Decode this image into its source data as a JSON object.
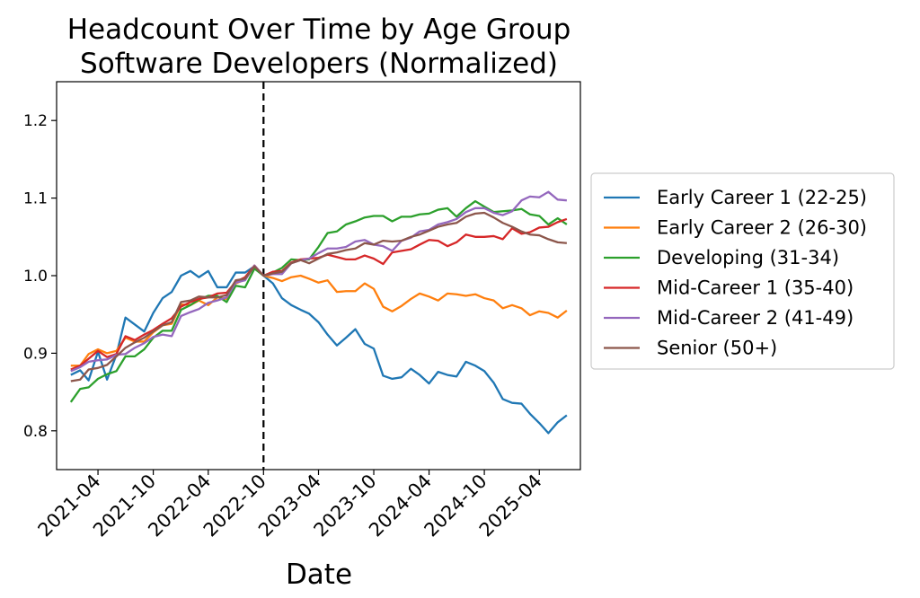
{
  "chart_data": {
    "type": "line",
    "title": "Headcount Over Time by Age Group",
    "subtitle": "Software Developers (Normalized)",
    "xlabel": "Date",
    "ylabel": "",
    "ylim": [
      0.75,
      1.25
    ],
    "yticks": [
      0.8,
      0.9,
      1.0,
      1.1,
      1.2
    ],
    "ytick_labels": [
      "0.8",
      "0.9",
      "1.0",
      "1.1",
      "1.2"
    ],
    "xlim": [
      "2020-11-15",
      "2025-08-15"
    ],
    "xticks": [
      "2021-04-01",
      "2021-10-01",
      "2022-04-01",
      "2022-10-01",
      "2023-04-01",
      "2023-10-01",
      "2024-04-01",
      "2024-10-01",
      "2025-04-01"
    ],
    "xtick_labels": [
      "2021-04",
      "2021-10",
      "2022-04",
      "2022-10",
      "2023-04",
      "2023-10",
      "2024-04",
      "2024-10",
      "2025-04"
    ],
    "vline": {
      "x": "2022-10-01",
      "style": "dashed",
      "color": "#000000"
    },
    "grid": false,
    "legend_position": "outside-right",
    "x_start": "2021-01",
    "x_step": "1 month",
    "series": [
      {
        "name": "Early Career 1 (22-25)",
        "color": "#1f77b4",
        "values": [
          0.872,
          0.878,
          0.865,
          0.902,
          0.866,
          0.898,
          0.946,
          0.937,
          0.928,
          0.952,
          0.971,
          0.979,
          1.0,
          1.006,
          0.998,
          1.006,
          0.985,
          0.985,
          1.004,
          1.004,
          1.012,
          1.0,
          0.99,
          0.971,
          0.962,
          0.956,
          0.951,
          0.94,
          0.924,
          0.91,
          0.92,
          0.931,
          0.912,
          0.906,
          0.871,
          0.867,
          0.869,
          0.88,
          0.872,
          0.861,
          0.876,
          0.872,
          0.87,
          0.889,
          0.884,
          0.877,
          0.862,
          0.841,
          0.836,
          0.835,
          0.822,
          0.81,
          0.797,
          0.811,
          0.82
        ]
      },
      {
        "name": "Early Career 2 (26-30)",
        "color": "#ff7f0e",
        "values": [
          0.884,
          0.884,
          0.899,
          0.905,
          0.9,
          0.903,
          0.92,
          0.915,
          0.915,
          0.927,
          0.936,
          0.938,
          0.963,
          0.962,
          0.968,
          0.962,
          0.972,
          0.97,
          0.99,
          0.995,
          1.013,
          1.0,
          0.997,
          0.993,
          0.998,
          1.0,
          0.996,
          0.991,
          0.994,
          0.979,
          0.98,
          0.98,
          0.99,
          0.983,
          0.96,
          0.954,
          0.961,
          0.97,
          0.977,
          0.973,
          0.968,
          0.977,
          0.976,
          0.974,
          0.976,
          0.971,
          0.968,
          0.958,
          0.962,
          0.958,
          0.949,
          0.954,
          0.952,
          0.946,
          0.955
        ]
      },
      {
        "name": "Developing (31-34)",
        "color": "#2ca02c",
        "values": [
          0.837,
          0.854,
          0.856,
          0.867,
          0.873,
          0.877,
          0.896,
          0.896,
          0.905,
          0.92,
          0.929,
          0.929,
          0.956,
          0.962,
          0.969,
          0.974,
          0.974,
          0.966,
          0.987,
          0.985,
          1.009,
          1.0,
          1.004,
          1.01,
          1.021,
          1.02,
          1.021,
          1.037,
          1.055,
          1.057,
          1.066,
          1.07,
          1.075,
          1.077,
          1.077,
          1.07,
          1.076,
          1.076,
          1.079,
          1.08,
          1.085,
          1.087,
          1.076,
          1.087,
          1.096,
          1.089,
          1.082,
          1.083,
          1.084,
          1.086,
          1.079,
          1.077,
          1.066,
          1.074,
          1.066
        ]
      },
      {
        "name": "Mid-Career 1 (35-40)",
        "color": "#d62728",
        "values": [
          0.879,
          0.884,
          0.893,
          0.903,
          0.895,
          0.899,
          0.922,
          0.917,
          0.924,
          0.93,
          0.938,
          0.945,
          0.96,
          0.966,
          0.97,
          0.972,
          0.977,
          0.978,
          0.992,
          0.998,
          1.013,
          1.0,
          1.005,
          1.006,
          1.017,
          1.021,
          1.022,
          1.023,
          1.027,
          1.024,
          1.021,
          1.021,
          1.026,
          1.022,
          1.015,
          1.03,
          1.032,
          1.034,
          1.04,
          1.046,
          1.045,
          1.038,
          1.043,
          1.053,
          1.05,
          1.05,
          1.051,
          1.047,
          1.061,
          1.054,
          1.056,
          1.062,
          1.063,
          1.069,
          1.073
        ]
      },
      {
        "name": "Mid-Career 2 (41-49)",
        "color": "#9467bd",
        "values": [
          0.877,
          0.882,
          0.889,
          0.891,
          0.892,
          0.898,
          0.899,
          0.907,
          0.913,
          0.921,
          0.924,
          0.922,
          0.948,
          0.953,
          0.957,
          0.965,
          0.968,
          0.972,
          0.991,
          0.994,
          1.013,
          1.0,
          1.002,
          1.002,
          1.016,
          1.02,
          1.022,
          1.029,
          1.035,
          1.035,
          1.037,
          1.044,
          1.046,
          1.04,
          1.038,
          1.032,
          1.045,
          1.049,
          1.057,
          1.059,
          1.066,
          1.069,
          1.073,
          1.082,
          1.087,
          1.087,
          1.081,
          1.078,
          1.083,
          1.097,
          1.102,
          1.101,
          1.108,
          1.098,
          1.097
        ]
      },
      {
        "name": "Senior (50+)",
        "color": "#8c564b",
        "values": [
          0.864,
          0.866,
          0.879,
          0.881,
          0.885,
          0.896,
          0.907,
          0.914,
          0.92,
          0.928,
          0.936,
          0.94,
          0.966,
          0.968,
          0.973,
          0.972,
          0.972,
          0.975,
          0.994,
          0.996,
          1.012,
          1.0,
          1.003,
          1.005,
          1.016,
          1.02,
          1.016,
          1.022,
          1.028,
          1.03,
          1.033,
          1.035,
          1.042,
          1.04,
          1.045,
          1.044,
          1.045,
          1.05,
          1.053,
          1.058,
          1.063,
          1.066,
          1.068,
          1.076,
          1.08,
          1.081,
          1.075,
          1.068,
          1.063,
          1.057,
          1.053,
          1.052,
          1.047,
          1.043,
          1.042
        ]
      }
    ]
  }
}
